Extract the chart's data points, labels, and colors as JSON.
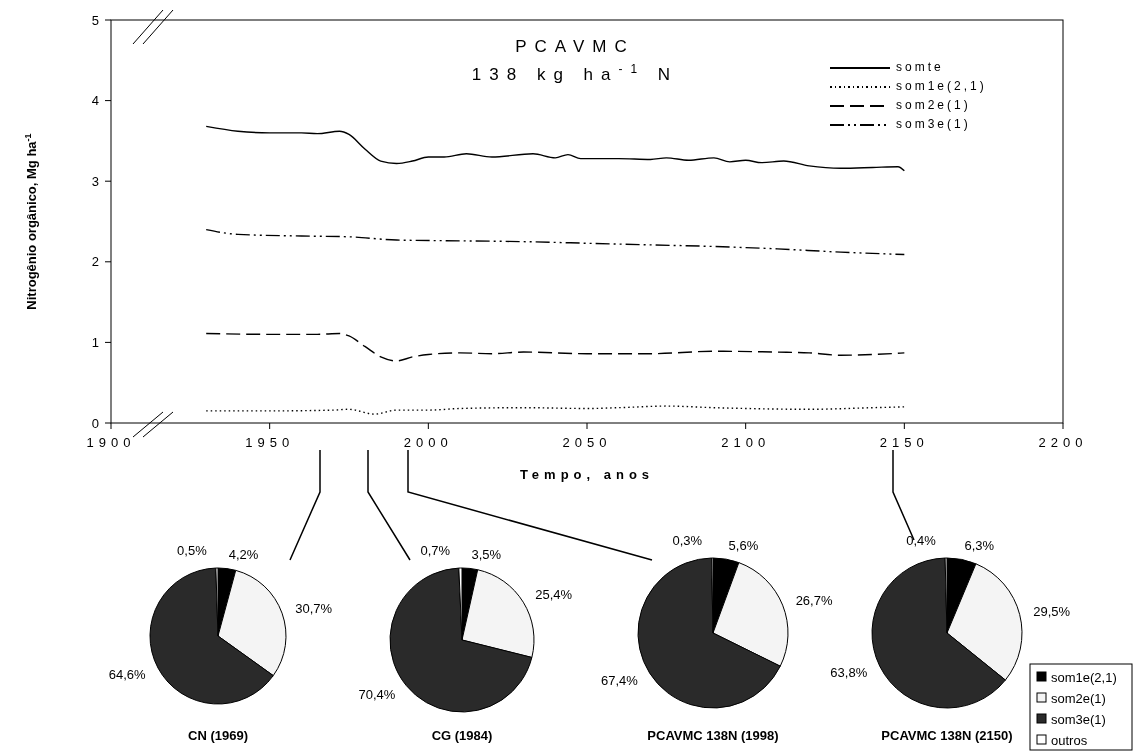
{
  "chart_data": [
    {
      "type": "line",
      "title": "PCAVMC",
      "subtitle": "138 kg ha$^{-1}$ N",
      "xlabel": "Tempo, anos",
      "ylabel": "Nitrogênio orgânico, Mg ha$^{-1}$",
      "xlim": [
        1900,
        2200
      ],
      "xticks": [
        1900,
        1950,
        2000,
        2050,
        2100,
        2150,
        2200
      ],
      "ylim": [
        0,
        5
      ],
      "yticks": [
        0,
        1,
        2,
        3,
        4,
        5
      ],
      "grid": false,
      "legend": "top right",
      "marker": "none",
      "series": [
        {
          "name": "somte",
          "color": "#000000",
          "line_style": "solid",
          "x": [
            1930,
            1940,
            1950,
            1960,
            1965,
            1972,
            1975,
            1980,
            1985,
            1990,
            1995,
            2000,
            2005,
            2012,
            2020,
            2033,
            2040,
            2044,
            2048,
            2060,
            2070,
            2075,
            2082,
            2090,
            2095,
            2100,
            2105,
            2112,
            2120,
            2130,
            2140,
            2148,
            2150
          ],
          "values": [
            3.68,
            3.62,
            3.6,
            3.6,
            3.59,
            3.62,
            3.58,
            3.4,
            3.25,
            3.22,
            3.25,
            3.3,
            3.3,
            3.34,
            3.3,
            3.34,
            3.29,
            3.33,
            3.28,
            3.28,
            3.27,
            3.29,
            3.26,
            3.29,
            3.24,
            3.26,
            3.23,
            3.25,
            3.19,
            3.16,
            3.17,
            3.18,
            3.13
          ]
        },
        {
          "name": "som1e(2,1)",
          "color": "#000000",
          "line_style": "dotted",
          "x": [
            1930,
            1950,
            1970,
            1975,
            1983,
            1990,
            2000,
            2010,
            2030,
            2050,
            2060,
            2075,
            2090,
            2100,
            2120,
            2140,
            2150
          ],
          "values": [
            0.15,
            0.15,
            0.16,
            0.17,
            0.11,
            0.16,
            0.16,
            0.18,
            0.19,
            0.18,
            0.19,
            0.21,
            0.19,
            0.18,
            0.17,
            0.19,
            0.2
          ]
        },
        {
          "name": "som2e(1)",
          "color": "#000000",
          "line_style": "dashed",
          "x": [
            1930,
            1950,
            1965,
            1972,
            1975,
            1980,
            1985,
            1990,
            1995,
            2000,
            2010,
            2020,
            2030,
            2050,
            2070,
            2090,
            2110,
            2120,
            2130,
            2140,
            2150
          ],
          "values": [
            1.11,
            1.1,
            1.1,
            1.11,
            1.08,
            0.95,
            0.82,
            0.77,
            0.82,
            0.85,
            0.87,
            0.86,
            0.88,
            0.86,
            0.86,
            0.89,
            0.88,
            0.87,
            0.84,
            0.85,
            0.87
          ]
        },
        {
          "name": "som3e(1)",
          "color": "#000000",
          "line_style": "dashdot",
          "x": [
            1930,
            1940,
            1960,
            1975,
            1990,
            2010,
            2030,
            2050,
            2070,
            2090,
            2110,
            2130,
            2150
          ],
          "values": [
            2.4,
            2.34,
            2.32,
            2.31,
            2.27,
            2.26,
            2.25,
            2.23,
            2.21,
            2.19,
            2.16,
            2.12,
            2.09
          ]
        }
      ]
    },
    {
      "type": "pie",
      "title": "CN (1969)",
      "categories": [
        null,
        null,
        null,
        null
      ],
      "values": [
        4.2,
        30.7,
        64.6,
        0.5
      ],
      "value_labels": [
        "4,2%",
        "30,7%",
        "64,6%",
        "0,5%"
      ],
      "colors": [
        "#000000",
        "#f4f4f4",
        "#2a2a2a",
        "#ffffff"
      ],
      "legend": false
    },
    {
      "type": "pie",
      "title": "CG (1984)",
      "categories": [
        null,
        null,
        null,
        null
      ],
      "values": [
        3.5,
        25.4,
        70.4,
        0.7
      ],
      "value_labels": [
        "3,5%",
        "25,4%",
        "70,4%",
        "0,7%"
      ],
      "colors": [
        "#000000",
        "#f4f4f4",
        "#2a2a2a",
        "#ffffff"
      ],
      "legend": false
    },
    {
      "type": "pie",
      "title": "PCAVMC 138N (1998)",
      "categories": [
        null,
        null,
        null,
        null
      ],
      "values": [
        5.6,
        26.7,
        67.4,
        0.3
      ],
      "value_labels": [
        "5,6%",
        "26,7%",
        "67,4%",
        "0,3%"
      ],
      "colors": [
        "#000000",
        "#f4f4f4",
        "#2a2a2a",
        "#ffffff"
      ],
      "legend": false
    },
    {
      "type": "pie",
      "title": "PCAVMC 138N (2150)",
      "categories": [
        "som1e(2,1)",
        "som2e(1)",
        "som3e(1)",
        "outros"
      ],
      "values": [
        6.3,
        29.5,
        63.8,
        0.4
      ],
      "value_labels": [
        "6,3%",
        "29,5%",
        "63,8%",
        "0,4%"
      ],
      "colors": [
        "#000000",
        "#f4f4f4",
        "#2a2a2a",
        "#ffffff"
      ],
      "legend": "bottom right"
    }
  ]
}
